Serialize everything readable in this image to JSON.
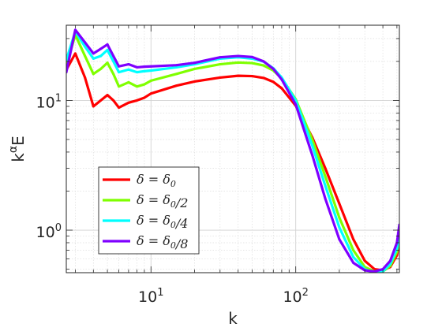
{
  "chart_data": {
    "type": "line",
    "xscale": "log",
    "yscale": "log",
    "xlabel": "k",
    "ylabel": "k^αE",
    "xlim": [
      2.6,
      520
    ],
    "ylim": [
      0.47,
      38
    ],
    "grid": true,
    "minor_grid": true,
    "legend_position": "bottom-left",
    "xticks": [
      {
        "value": 10,
        "label": "10^1"
      },
      {
        "value": 100,
        "label": "10^2"
      }
    ],
    "yticks": [
      {
        "value": 1,
        "label": "10^0"
      },
      {
        "value": 10,
        "label": "10^1"
      }
    ],
    "series": [
      {
        "name": "δ = δ_0",
        "color": "#ff0000",
        "points": [
          [
            2.6,
            17.2
          ],
          [
            3.0,
            23.0
          ],
          [
            3.5,
            15.0
          ],
          [
            4.0,
            9.0
          ],
          [
            4.5,
            10.0
          ],
          [
            5.0,
            11.0
          ],
          [
            5.5,
            10.0
          ],
          [
            6.0,
            8.8
          ],
          [
            7.0,
            9.6
          ],
          [
            8.0,
            10.0
          ],
          [
            9.0,
            10.5
          ],
          [
            10.0,
            11.3
          ],
          [
            15.0,
            13.0
          ],
          [
            20.0,
            14.0
          ],
          [
            30.0,
            15.0
          ],
          [
            40.0,
            15.5
          ],
          [
            50.0,
            15.4
          ],
          [
            60.0,
            14.9
          ],
          [
            70.0,
            13.9
          ],
          [
            80.0,
            12.4
          ],
          [
            100.0,
            9.1
          ],
          [
            130.0,
            5.2
          ],
          [
            160.0,
            3.0
          ],
          [
            200.0,
            1.6
          ],
          [
            250.0,
            0.85
          ],
          [
            300.0,
            0.58
          ],
          [
            350.0,
            0.5
          ],
          [
            400.0,
            0.49
          ],
          [
            450.0,
            0.52
          ],
          [
            500.0,
            0.64
          ],
          [
            520.0,
            0.82
          ]
        ]
      },
      {
        "name": "δ = δ_0/2",
        "color": "#7fff00",
        "points": [
          [
            2.6,
            18.5
          ],
          [
            3.0,
            32.0
          ],
          [
            3.5,
            22.0
          ],
          [
            4.0,
            16.0
          ],
          [
            4.5,
            17.5
          ],
          [
            5.0,
            19.5
          ],
          [
            5.5,
            16.0
          ],
          [
            6.0,
            12.8
          ],
          [
            7.0,
            13.8
          ],
          [
            8.0,
            12.8
          ],
          [
            9.0,
            13.3
          ],
          [
            10.0,
            14.2
          ],
          [
            15.0,
            16.0
          ],
          [
            20.0,
            17.5
          ],
          [
            30.0,
            19.0
          ],
          [
            40.0,
            19.6
          ],
          [
            50.0,
            19.4
          ],
          [
            60.0,
            18.6
          ],
          [
            70.0,
            17.0
          ],
          [
            80.0,
            14.8
          ],
          [
            100.0,
            10.2
          ],
          [
            130.0,
            5.0
          ],
          [
            160.0,
            2.6
          ],
          [
            200.0,
            1.25
          ],
          [
            250.0,
            0.7
          ],
          [
            300.0,
            0.52
          ],
          [
            350.0,
            0.48
          ],
          [
            400.0,
            0.48
          ],
          [
            450.0,
            0.53
          ],
          [
            500.0,
            0.68
          ],
          [
            520.0,
            0.88
          ]
        ]
      },
      {
        "name": "δ = δ_0/4",
        "color": "#00ffff",
        "points": [
          [
            2.6,
            20.5
          ],
          [
            3.0,
            34.0
          ],
          [
            3.5,
            26.0
          ],
          [
            4.0,
            21.0
          ],
          [
            4.5,
            22.0
          ],
          [
            5.0,
            24.5
          ],
          [
            5.5,
            20.0
          ],
          [
            6.0,
            16.5
          ],
          [
            7.0,
            17.3
          ],
          [
            8.0,
            16.5
          ],
          [
            9.0,
            16.8
          ],
          [
            10.0,
            17.0
          ],
          [
            15.0,
            18.0
          ],
          [
            20.0,
            19.0
          ],
          [
            30.0,
            21.0
          ],
          [
            40.0,
            21.5
          ],
          [
            50.0,
            21.0
          ],
          [
            60.0,
            19.9
          ],
          [
            70.0,
            17.7
          ],
          [
            80.0,
            15.0
          ],
          [
            100.0,
            10.0
          ],
          [
            130.0,
            4.5
          ],
          [
            160.0,
            2.2
          ],
          [
            200.0,
            1.05
          ],
          [
            250.0,
            0.62
          ],
          [
            300.0,
            0.5
          ],
          [
            350.0,
            0.47
          ],
          [
            400.0,
            0.48
          ],
          [
            450.0,
            0.55
          ],
          [
            500.0,
            0.72
          ],
          [
            520.0,
            0.9
          ]
        ]
      },
      {
        "name": "δ = δ_0/8",
        "color": "#7f00ff",
        "points": [
          [
            2.6,
            16.5
          ],
          [
            3.0,
            35.0
          ],
          [
            3.5,
            28.0
          ],
          [
            4.0,
            23.0
          ],
          [
            4.5,
            25.0
          ],
          [
            5.0,
            27.0
          ],
          [
            5.5,
            22.0
          ],
          [
            6.0,
            18.3
          ],
          [
            7.0,
            19.0
          ],
          [
            8.0,
            18.0
          ],
          [
            9.0,
            18.2
          ],
          [
            10.0,
            18.3
          ],
          [
            15.0,
            18.7
          ],
          [
            20.0,
            19.5
          ],
          [
            30.0,
            21.5
          ],
          [
            40.0,
            22.0
          ],
          [
            50.0,
            21.6
          ],
          [
            60.0,
            20.0
          ],
          [
            70.0,
            17.5
          ],
          [
            80.0,
            14.5
          ],
          [
            100.0,
            9.3
          ],
          [
            130.0,
            3.8
          ],
          [
            160.0,
            1.75
          ],
          [
            200.0,
            0.85
          ],
          [
            250.0,
            0.56
          ],
          [
            300.0,
            0.49
          ],
          [
            350.0,
            0.48
          ],
          [
            400.0,
            0.5
          ],
          [
            450.0,
            0.58
          ],
          [
            500.0,
            0.8
          ],
          [
            520.0,
            1.1
          ]
        ]
      }
    ]
  }
}
